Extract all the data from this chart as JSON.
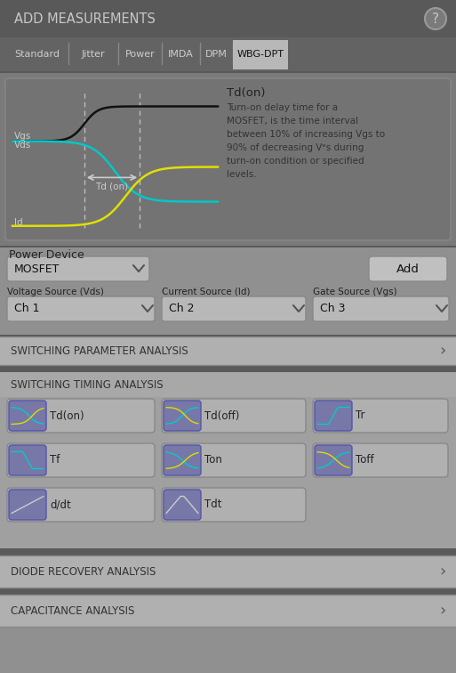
{
  "title": "ADD MEASUREMENTS",
  "bg_top": "#595959",
  "bg_tab": "#636363",
  "bg_waveform": "#737373",
  "bg_panel": "#909090",
  "bg_section": "#b0b0b0",
  "bg_btn_area": "#999999",
  "bg_separator": "#5a5a5a",
  "text_light": "#d0d0d0",
  "text_dark": "#1a1a1a",
  "text_mid": "#444444",
  "tabs": [
    "Standard",
    "Jitter",
    "Power",
    "IMDA",
    "DPM",
    "WBG-DPT"
  ],
  "active_tab": "WBG-DPT",
  "waveform_title": "Td(on)",
  "desc_lines": [
    "Turn-on delay time for a",
    "MOSFET, is the time interval",
    "between 10% of increasing Vɡs to",
    "90% of decreasing Vᵉs during",
    "turn-on condition or specified",
    "levels."
  ],
  "signal_labels": [
    "Vgs",
    "Vds",
    "Id"
  ],
  "td_label": "Td (on)",
  "power_device_label": "Power Device",
  "power_device_value": "MOSFET",
  "add_btn": "Add",
  "source_labels": [
    "Voltage Source (Vds)",
    "Current Source (Id)",
    "Gate Source (Vgs)"
  ],
  "source_values": [
    "Ch 1",
    "Ch 2",
    "Ch 3"
  ],
  "section1": "SWITCHING PARAMETER ANALYSIS",
  "section2": "SWITCHING TIMING ANALYSIS",
  "timing_buttons": [
    [
      "Td(on)",
      "Td(off)",
      "Tr"
    ],
    [
      "Tf",
      "Ton",
      "Toff"
    ],
    [
      "d/dt",
      "Tdt",
      ""
    ]
  ],
  "section3": "DIODE RECOVERY ANALYSIS",
  "section4": "CAPACITANCE ANALYSIS",
  "color_vgs": "#111111",
  "color_vds": "#00c8c8",
  "color_id": "#e0e000",
  "icon_bg": "#6b6b9a",
  "icon_fg": "#2255aa"
}
